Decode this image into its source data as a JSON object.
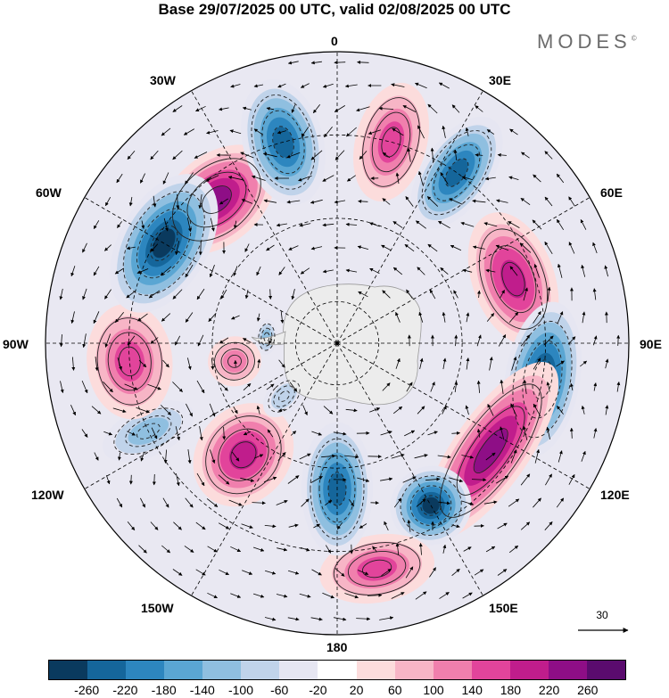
{
  "title": "Base 29/07/2025 00 UTC, valid 02/08/2025 00 UTC",
  "brand": {
    "name": "MODES",
    "mark": "©"
  },
  "longitude_labels": {
    "lon_0": "0",
    "lon_30e": "30E",
    "lon_60e": "60E",
    "lon_90e": "90E",
    "lon_120e": "120E",
    "lon_150e": "150E",
    "lon_180": "180",
    "lon_150w": "150W",
    "lon_120w": "120W",
    "lon_90w": "90W",
    "lon_60w": "60W",
    "lon_30w": "30W"
  },
  "reference_vector": {
    "value": "30"
  },
  "colorbar": {
    "colors": [
      "#0a3a5e",
      "#15669b",
      "#2d86bf",
      "#5aa6d3",
      "#8fbfe0",
      "#c0d3ea",
      "#e6e6f2",
      "#ffffff",
      "#fcdcdc",
      "#f7b5c6",
      "#f07fad",
      "#e2449b",
      "#c01d8c",
      "#8e0e86",
      "#5a0b6e"
    ],
    "ticks": [
      "-260",
      "-220",
      "-180",
      "-140",
      "-100",
      "-60",
      "-20",
      "20",
      "60",
      "100",
      "140",
      "180",
      "220",
      "260"
    ]
  },
  "anomaly_centers": [
    {
      "lon": -40,
      "lat": -45,
      "value": 240,
      "w": 75,
      "h": 50
    },
    {
      "lon": -15,
      "lat": -40,
      "value": -250,
      "w": 45,
      "h": 72
    },
    {
      "lon": 15,
      "lat": -40,
      "value": 160,
      "w": 40,
      "h": 68
    },
    {
      "lon": 35,
      "lat": -40,
      "value": -230,
      "w": 38,
      "h": 72
    },
    {
      "lon": 70,
      "lat": -45,
      "value": 210,
      "w": 78,
      "h": 46
    },
    {
      "lon": 100,
      "lat": -40,
      "value": -270,
      "w": 88,
      "h": 42
    },
    {
      "lon": 125,
      "lat": -45,
      "value": 230,
      "w": 118,
      "h": 42
    },
    {
      "lon": 150,
      "lat": -45,
      "value": -260,
      "w": 46,
      "h": 44
    },
    {
      "lon": 170,
      "lat": -35,
      "value": 170,
      "w": 65,
      "h": 38
    },
    {
      "lon": 180,
      "lat": -55,
      "value": -230,
      "w": 40,
      "h": 75
    },
    {
      "lon": -140,
      "lat": -55,
      "value": 200,
      "w": 52,
      "h": 62
    },
    {
      "lon": -115,
      "lat": -40,
      "value": -120,
      "w": 28,
      "h": 55
    },
    {
      "lon": -95,
      "lat": -40,
      "value": 150,
      "w": 65,
      "h": 48
    },
    {
      "lon": -60,
      "lat": -42,
      "value": -260,
      "w": 85,
      "h": 50
    },
    {
      "lon": -100,
      "lat": -65,
      "value": 100,
      "w": 28,
      "h": 30
    },
    {
      "lon": -85,
      "lat": -73,
      "value": -120,
      "w": 20,
      "h": 12
    },
    {
      "lon": -135,
      "lat": -72,
      "value": -60,
      "w": 18,
      "h": 28
    }
  ]
}
